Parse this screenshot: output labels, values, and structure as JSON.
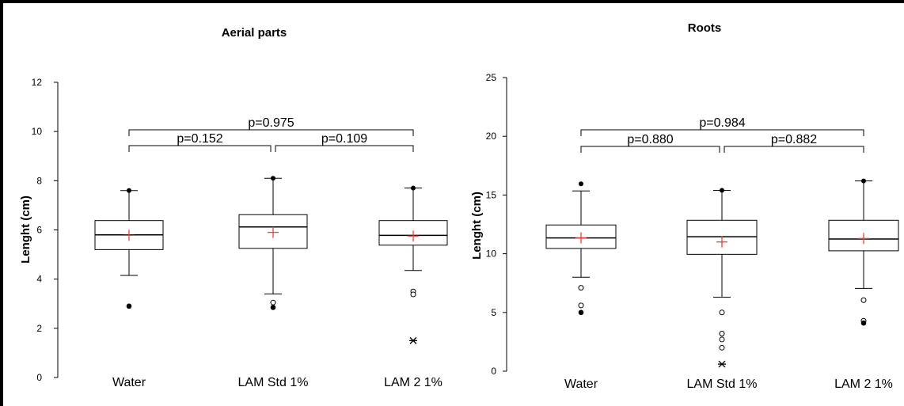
{
  "chart_data": [
    {
      "type": "box",
      "title": "Aerial parts",
      "ylabel": "Lenght (cm)",
      "ylim": [
        0,
        12
      ],
      "yticks": [
        0,
        2,
        4,
        6,
        8,
        10,
        12
      ],
      "categories": [
        "Water",
        "LAM Std 1%",
        "LAM 2 1%"
      ],
      "boxes": [
        {
          "category": "Water",
          "min": 4.15,
          "q1": 5.2,
          "median": 5.8,
          "q3": 6.38,
          "max": 7.6,
          "mean": 5.78,
          "max_point": 7.6,
          "outliers": [],
          "extremes": [
            2.9
          ],
          "stars": []
        },
        {
          "category": "LAM Std 1%",
          "min": 3.4,
          "q1": 5.25,
          "median": 6.12,
          "q3": 6.62,
          "max": 8.1,
          "mean": 5.9,
          "max_point": 8.1,
          "outliers": [
            3.05
          ],
          "extremes": [
            2.85
          ],
          "stars": []
        },
        {
          "category": "LAM 2 1%",
          "min": 4.35,
          "q1": 5.38,
          "median": 5.78,
          "q3": 6.38,
          "max": 7.7,
          "mean": 5.75,
          "max_point": 7.7,
          "outliers": [
            3.5,
            3.38
          ],
          "extremes": [],
          "stars": [
            1.5
          ]
        }
      ],
      "comparisons": [
        {
          "from": 0,
          "to": 1,
          "label": "p=0.152",
          "level": 1
        },
        {
          "from": 1,
          "to": 2,
          "label": "p=0.109",
          "level": 1
        },
        {
          "from": 0,
          "to": 2,
          "label": "p=0.975",
          "level": 2
        }
      ]
    },
    {
      "type": "box",
      "title": "Roots",
      "ylabel": "Lenght (cm)",
      "ylim": [
        0,
        25
      ],
      "yticks": [
        0,
        5,
        10,
        15,
        20,
        25
      ],
      "categories": [
        "Water",
        "LAM Std 1%",
        "LAM 2 1%"
      ],
      "boxes": [
        {
          "category": "Water",
          "min": 8.0,
          "q1": 10.45,
          "median": 11.35,
          "q3": 12.45,
          "max": 15.35,
          "mean": 11.35,
          "max_point": 15.95,
          "outliers": [
            7.1,
            5.6
          ],
          "extremes": [
            5.0
          ],
          "stars": []
        },
        {
          "category": "LAM Std 1%",
          "min": 6.3,
          "q1": 9.95,
          "median": 11.45,
          "q3": 12.85,
          "max": 15.4,
          "mean": 11.0,
          "max_point": 15.4,
          "outliers": [
            5.0,
            3.2,
            2.7,
            2.0
          ],
          "extremes": [],
          "stars": [
            0.6
          ]
        },
        {
          "category": "LAM 2 1%",
          "min": 7.05,
          "q1": 10.25,
          "median": 11.25,
          "q3": 12.85,
          "max": 16.2,
          "mean": 11.3,
          "max_point": 16.2,
          "outliers": [
            6.05,
            4.3
          ],
          "extremes": [
            4.1
          ],
          "stars": []
        }
      ],
      "comparisons": [
        {
          "from": 0,
          "to": 1,
          "label": "p=0.880",
          "level": 1
        },
        {
          "from": 1,
          "to": 2,
          "label": "p=0.882",
          "level": 1
        },
        {
          "from": 0,
          "to": 2,
          "label": "p=0.984",
          "level": 2
        }
      ]
    }
  ]
}
